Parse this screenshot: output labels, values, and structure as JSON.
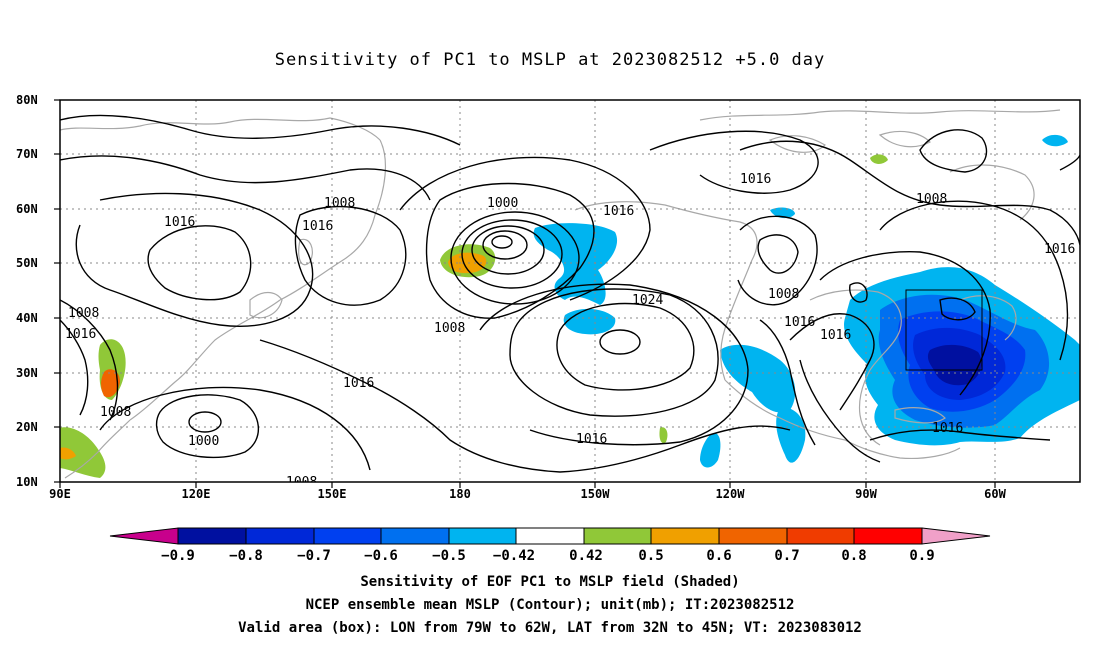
{
  "title": "Sensitivity of PC1 to MSLP at 2023082512 +5.0 day",
  "axes": {
    "lat_labels": [
      "80N",
      "70N",
      "60N",
      "50N",
      "40N",
      "30N",
      "20N",
      "10N"
    ],
    "lon_labels": [
      "90E",
      "120E",
      "150E",
      "180",
      "150W",
      "120W",
      "90W",
      "60W"
    ]
  },
  "contour_labels": [
    "1008",
    "1000",
    "1016",
    "1016",
    "1016",
    "1016",
    "1008",
    "1008",
    "1024",
    "1008",
    "1016",
    "1016",
    "1008",
    "1016",
    "1000",
    "1008",
    "1016",
    "1016",
    "1016",
    "1008",
    "1016"
  ],
  "colorbar": {
    "labels": [
      "−0.9",
      "−0.8",
      "−0.7",
      "−0.6",
      "−0.5",
      "−0.42",
      "0.42",
      "0.5",
      "0.6",
      "0.7",
      "0.8",
      "0.9"
    ],
    "colors": [
      "#c8008c",
      "#0010a0",
      "#0028d8",
      "#0040f0",
      "#0070f0",
      "#00b4f0",
      "#ffffff",
      "#90c838",
      "#f0a000",
      "#f06400",
      "#f03c00",
      "#ff0000",
      "#f0a0c8"
    ]
  },
  "captions": [
    "Sensitivity of EOF PC1 to MSLP field (Shaded)",
    "NCEP ensemble mean MSLP (Contour); unit(mb); IT:2023082512",
    "Valid area (box): LON from 79W to 62W, LAT from 32N to 45N; VT: 2023083012"
  ]
}
